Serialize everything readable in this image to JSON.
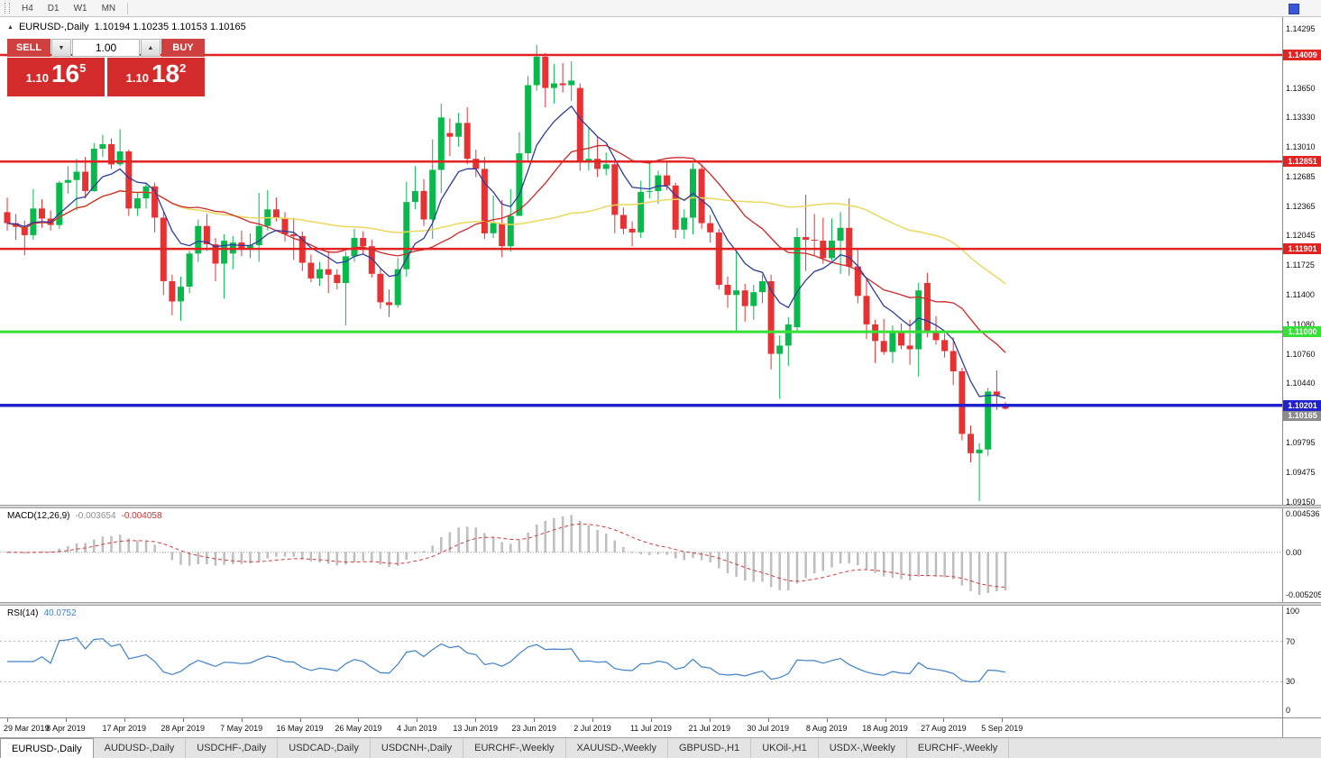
{
  "toolbar": {
    "timeframes": [
      {
        "label": "H4"
      },
      {
        "label": "D1"
      },
      {
        "label": "W1"
      },
      {
        "label": "MN"
      }
    ]
  },
  "icons": {
    "spinner_down": "▼",
    "spinner_up": "▲",
    "collapse_marker": "▲"
  },
  "header": {
    "symbol": "EURUSD-,Daily",
    "ohlc": "1.10194 1.10235 1.10153 1.10165"
  },
  "trade_panel": {
    "sell_label": "SELL",
    "buy_label": "BUY",
    "volume": "1.00",
    "sell_price": {
      "prefix": "1.10",
      "big": "16",
      "sup": "5"
    },
    "buy_price": {
      "prefix": "1.10",
      "big": "18",
      "sup": "2"
    }
  },
  "chart_data": {
    "type": "candlestick",
    "title": "EURUSD-,Daily",
    "current_bar": {
      "open": 1.10194,
      "high": 1.10235,
      "low": 1.10153,
      "close": 1.10165
    },
    "y_axis": {
      "top_price": 1.1442,
      "bottom_price": 1.0912,
      "ticks": [
        1.14295,
        1.1365,
        1.1333,
        1.1301,
        1.12685,
        1.12365,
        1.12045,
        1.11725,
        1.114,
        1.1108,
        1.1076,
        1.1044,
        1.09795,
        1.09475,
        1.0915
      ]
    },
    "x_labels": [
      "29 Mar 2019",
      "8 Apr 2019",
      "17 Apr 2019",
      "28 Apr 2019",
      "7 May 2019",
      "16 May 2019",
      "26 May 2019",
      "4 Jun 2019",
      "13 Jun 2019",
      "23 Jun 2019",
      "2 Jul 2019",
      "11 Jul 2019",
      "21 Jul 2019",
      "30 Jul 2019",
      "8 Aug 2019",
      "18 Aug 2019",
      "27 Aug 2019",
      "5 Sep 2019"
    ],
    "up_color": "#09b94c",
    "down_color": "#e63232",
    "levels": [
      {
        "price": 1.14009,
        "label": "1.14009",
        "color": "#e32222",
        "text_color": "#ffffff",
        "width": 2.5
      },
      {
        "price": 1.12851,
        "label": "1.12851",
        "color": "#e32222",
        "text_color": "#ffffff",
        "width": 2.5
      },
      {
        "price": 1.11901,
        "label": "1.11901",
        "color": "#e32222",
        "text_color": "#ffffff",
        "width": 2.5
      },
      {
        "price": 1.11,
        "label": "1.11000",
        "color": "#35e135",
        "text_color": "#ffffff",
        "width": 3
      },
      {
        "price": 1.10201,
        "label": "1.10201",
        "color": "#2020cc",
        "text_color": "#ffffff",
        "width": 3.5
      }
    ],
    "bid_tag": {
      "price": 1.10165,
      "label": "1.10165",
      "color": "#8c8c8c",
      "text_color": "#ffffff"
    },
    "moving_averages": [
      {
        "type": "ema",
        "period": 8,
        "color": "#2b3c9e",
        "width": 1.3
      },
      {
        "type": "sma",
        "period": 20,
        "color": "#d02828",
        "width": 1.3
      },
      {
        "type": "sma",
        "period": 50,
        "color": "#ead95e",
        "width": 1.5
      }
    ],
    "candles": [
      [
        1.123,
        1.1246,
        1.121,
        1.1218
      ],
      [
        1.1218,
        1.1228,
        1.12,
        1.1214
      ],
      [
        1.1214,
        1.1221,
        1.1183,
        1.1205
      ],
      [
        1.1205,
        1.1255,
        1.12,
        1.1234
      ],
      [
        1.1234,
        1.1244,
        1.1213,
        1.1223
      ],
      [
        1.1223,
        1.1232,
        1.121,
        1.1216
      ],
      [
        1.1216,
        1.1264,
        1.1212,
        1.1262
      ],
      [
        1.1262,
        1.128,
        1.125,
        1.1265
      ],
      [
        1.1265,
        1.1288,
        1.1232,
        1.1274
      ],
      [
        1.1274,
        1.129,
        1.1245,
        1.1253
      ],
      [
        1.1253,
        1.1305,
        1.1252,
        1.1299
      ],
      [
        1.1299,
        1.1314,
        1.129,
        1.1304
      ],
      [
        1.1304,
        1.131,
        1.1277,
        1.1282
      ],
      [
        1.1282,
        1.132,
        1.128,
        1.1296
      ],
      [
        1.1296,
        1.1298,
        1.1226,
        1.1234
      ],
      [
        1.1234,
        1.1252,
        1.1226,
        1.1245
      ],
      [
        1.1245,
        1.1262,
        1.1234,
        1.1258
      ],
      [
        1.1258,
        1.1262,
        1.1208,
        1.1224
      ],
      [
        1.1224,
        1.123,
        1.114,
        1.1155
      ],
      [
        1.1155,
        1.1162,
        1.1118,
        1.1133
      ],
      [
        1.1133,
        1.116,
        1.1112,
        1.1149
      ],
      [
        1.1149,
        1.1188,
        1.1142,
        1.1185
      ],
      [
        1.1185,
        1.1222,
        1.1176,
        1.1215
      ],
      [
        1.1215,
        1.1228,
        1.1188,
        1.1195
      ],
      [
        1.1195,
        1.1202,
        1.1155,
        1.1174
      ],
      [
        1.1174,
        1.1206,
        1.1136,
        1.1199
      ],
      [
        1.1185,
        1.1204,
        1.1168,
        1.1197
      ],
      [
        1.1197,
        1.121,
        1.1182,
        1.1191
      ],
      [
        1.1191,
        1.1207,
        1.118,
        1.1194
      ],
      [
        1.1194,
        1.1251,
        1.1176,
        1.1215
      ],
      [
        1.1215,
        1.1254,
        1.121,
        1.1233
      ],
      [
        1.1233,
        1.1246,
        1.122,
        1.1224
      ],
      [
        1.1224,
        1.123,
        1.1198,
        1.1206
      ],
      [
        1.1206,
        1.1224,
        1.1178,
        1.1204
      ],
      [
        1.1204,
        1.1209,
        1.1166,
        1.1175
      ],
      [
        1.1175,
        1.1184,
        1.1154,
        1.1158
      ],
      [
        1.1158,
        1.1176,
        1.115,
        1.1168
      ],
      [
        1.1168,
        1.1188,
        1.1142,
        1.1162
      ],
      [
        1.1162,
        1.1168,
        1.1146,
        1.1153
      ],
      [
        1.1153,
        1.1187,
        1.1107,
        1.1182
      ],
      [
        1.1182,
        1.1212,
        1.1176,
        1.1202
      ],
      [
        1.1202,
        1.1209,
        1.1184,
        1.1193
      ],
      [
        1.1193,
        1.12,
        1.1159,
        1.1163
      ],
      [
        1.1163,
        1.117,
        1.1125,
        1.1132
      ],
      [
        1.1132,
        1.1146,
        1.1116,
        1.1129
      ],
      [
        1.1129,
        1.118,
        1.1126,
        1.1168
      ],
      [
        1.1168,
        1.1263,
        1.116,
        1.1241
      ],
      [
        1.1241,
        1.128,
        1.1233,
        1.1253
      ],
      [
        1.1253,
        1.1266,
        1.1215,
        1.1222
      ],
      [
        1.1222,
        1.1309,
        1.1201,
        1.1276
      ],
      [
        1.1276,
        1.1348,
        1.1251,
        1.1333
      ],
      [
        1.1316,
        1.1332,
        1.1291,
        1.1312
      ],
      [
        1.1312,
        1.1338,
        1.1301,
        1.1327
      ],
      [
        1.1327,
        1.1344,
        1.1282,
        1.1288
      ],
      [
        1.1288,
        1.1298,
        1.1268,
        1.1277
      ],
      [
        1.1277,
        1.129,
        1.1201,
        1.1207
      ],
      [
        1.1207,
        1.1248,
        1.1202,
        1.1218
      ],
      [
        1.1218,
        1.1243,
        1.1181,
        1.1193
      ],
      [
        1.1193,
        1.1255,
        1.1187,
        1.1226
      ],
      [
        1.1226,
        1.1317,
        1.1226,
        1.1294
      ],
      [
        1.1294,
        1.1378,
        1.1285,
        1.1368
      ],
      [
        1.1368,
        1.1412,
        1.1362,
        1.1399
      ],
      [
        1.1399,
        1.1403,
        1.1344,
        1.1365
      ],
      [
        1.1365,
        1.1391,
        1.1348,
        1.137
      ],
      [
        1.137,
        1.1392,
        1.136,
        1.1368
      ],
      [
        1.1368,
        1.1394,
        1.1351,
        1.1373
      ],
      [
        1.1365,
        1.137,
        1.1275,
        1.1285
      ],
      [
        1.1285,
        1.1322,
        1.1275,
        1.1288
      ],
      [
        1.1288,
        1.1312,
        1.1268,
        1.1277
      ],
      [
        1.1277,
        1.1295,
        1.127,
        1.1282
      ],
      [
        1.1282,
        1.1288,
        1.1207,
        1.1227
      ],
      [
        1.1227,
        1.1235,
        1.1206,
        1.1212
      ],
      [
        1.1212,
        1.122,
        1.1193,
        1.1208
      ],
      [
        1.1208,
        1.1264,
        1.1202,
        1.1252
      ],
      [
        1.1252,
        1.1286,
        1.1245,
        1.1253
      ],
      [
        1.1253,
        1.1275,
        1.1239,
        1.127
      ],
      [
        1.127,
        1.1284,
        1.1254,
        1.1259
      ],
      [
        1.1259,
        1.1262,
        1.1202,
        1.1211
      ],
      [
        1.1211,
        1.1233,
        1.1201,
        1.1224
      ],
      [
        1.1224,
        1.1283,
        1.1206,
        1.1277
      ],
      [
        1.1277,
        1.1282,
        1.1212,
        1.1218
      ],
      [
        1.1218,
        1.1227,
        1.1197,
        1.1208
      ],
      [
        1.1208,
        1.1212,
        1.1146,
        1.1151
      ],
      [
        1.1151,
        1.116,
        1.1126,
        1.114
      ],
      [
        1.114,
        1.1187,
        1.1101,
        1.1145
      ],
      [
        1.1145,
        1.1152,
        1.1111,
        1.1128
      ],
      [
        1.1128,
        1.1151,
        1.1113,
        1.1143
      ],
      [
        1.1143,
        1.1162,
        1.1131,
        1.1155
      ],
      [
        1.1155,
        1.1162,
        1.1059,
        1.1076
      ],
      [
        1.1076,
        1.1096,
        1.1027,
        1.1085
      ],
      [
        1.1085,
        1.1116,
        1.1063,
        1.1108
      ],
      [
        1.1105,
        1.1213,
        1.1101,
        1.1203
      ],
      [
        1.1203,
        1.1249,
        1.1166,
        1.12
      ],
      [
        1.12,
        1.1228,
        1.1183,
        1.1199
      ],
      [
        1.1199,
        1.1224,
        1.1174,
        1.118
      ],
      [
        1.118,
        1.1223,
        1.1177,
        1.1199
      ],
      [
        1.1199,
        1.123,
        1.1163,
        1.1213
      ],
      [
        1.1213,
        1.1245,
        1.1161,
        1.1171
      ],
      [
        1.1171,
        1.1191,
        1.1131,
        1.1139
      ],
      [
        1.1139,
        1.1159,
        1.1092,
        1.1108
      ],
      [
        1.1108,
        1.1113,
        1.1066,
        1.109
      ],
      [
        1.109,
        1.1114,
        1.1075,
        1.1078
      ],
      [
        1.1078,
        1.1107,
        1.1066,
        1.1099
      ],
      [
        1.1099,
        1.1109,
        1.1081,
        1.1085
      ],
      [
        1.1085,
        1.1113,
        1.1064,
        1.1081
      ],
      [
        1.1081,
        1.1153,
        1.1051,
        1.1145
      ],
      [
        1.1153,
        1.1164,
        1.1094,
        1.1101
      ],
      [
        1.1101,
        1.1117,
        1.1086,
        1.1091
      ],
      [
        1.1091,
        1.1098,
        1.1072,
        1.1079
      ],
      [
        1.1079,
        1.1094,
        1.1042,
        1.1057
      ],
      [
        1.1057,
        1.1061,
        1.0982,
        1.0989
      ],
      [
        1.0989,
        1.0998,
        1.0958,
        1.0968
      ],
      [
        1.0968,
        1.0979,
        1.0916,
        1.0972
      ],
      [
        1.0972,
        1.1039,
        1.0965,
        1.1035
      ],
      [
        1.1035,
        1.1058,
        1.1015,
        1.1031
      ],
      [
        1.10194,
        1.10235,
        1.10153,
        1.10165
      ]
    ],
    "indicators": {
      "macd": {
        "name": "MACD(12,26,9)",
        "value_main": "-0.003654",
        "value_signal": "-0.004058",
        "fast": 12,
        "slow": 26,
        "signal_period": 9,
        "axis_max": 0.004536,
        "axis_min": -0.005205,
        "axis_labels": [
          "0.004536",
          "0.00",
          "-0.005205"
        ],
        "hist_color": "#c2c2c2",
        "signal_color": "#d23b3b"
      },
      "rsi": {
        "name": "RSI(14)",
        "value": "40.0752",
        "period": 14,
        "levels": [
          70,
          30
        ],
        "axis_labels": [
          "100",
          "70",
          "30",
          "0"
        ],
        "color": "#3f81c9"
      }
    }
  },
  "tabs": {
    "items": [
      {
        "label": "EURUSD-,Daily",
        "active": true
      },
      {
        "label": "AUDUSD-,Daily",
        "active": false
      },
      {
        "label": "USDCHF-,Daily",
        "active": false
      },
      {
        "label": "USDCAD-,Daily",
        "active": false
      },
      {
        "label": "USDCNH-,Daily",
        "active": false
      },
      {
        "label": "EURCHF-,Weekly",
        "active": false
      },
      {
        "label": "XAUUSD-,Weekly",
        "active": false
      },
      {
        "label": "GBPUSD-,H1",
        "active": false
      },
      {
        "label": "UKOil-,H1",
        "active": false
      },
      {
        "label": "USDX-,Weekly",
        "active": false
      },
      {
        "label": "EURCHF-,Weekly",
        "active": false
      }
    ]
  }
}
